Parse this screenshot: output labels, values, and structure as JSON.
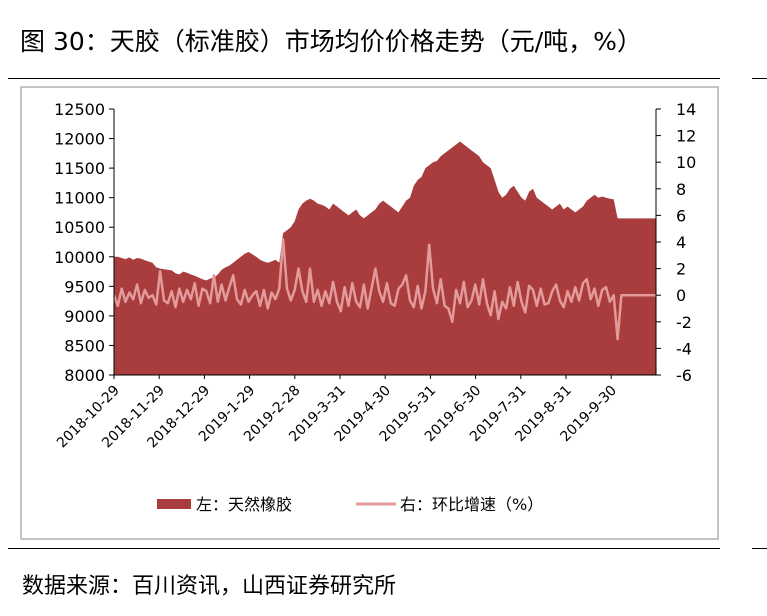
{
  "title": "图 30：天胶（标准胶）市场均价价格走势（元/吨，%）",
  "source": "数据来源：百川资讯，山西证券研究所",
  "colors": {
    "area": "#a93c3c",
    "line": "#e39a9a",
    "axis": "#000000"
  },
  "chart_data": {
    "type": "area",
    "y_left": {
      "min": 8000,
      "max": 12500,
      "ticks": [
        8000,
        8500,
        9000,
        9500,
        10000,
        10500,
        11000,
        11500,
        12000,
        12500
      ]
    },
    "y_right": {
      "min": -6,
      "max": 14,
      "ticks": [
        -6,
        -4,
        -2,
        0,
        2,
        4,
        6,
        8,
        10,
        12,
        14
      ]
    },
    "x_labels": [
      "2018-10-29",
      "2018-11-29",
      "2018-12-29",
      "2019-1-29",
      "2019-2-28",
      "2019-3-31",
      "2019-4-30",
      "2019-5-31",
      "2019-6-30",
      "2019-7-31",
      "2019-8-31",
      "2019-9-30"
    ],
    "series": [
      {
        "name": "左：天然橡胶",
        "type": "area",
        "axis": "left",
        "values": [
          10000,
          10000,
          9980,
          9960,
          9990,
          9950,
          9980,
          9970,
          9940,
          9920,
          9900,
          9820,
          9800,
          9790,
          9780,
          9770,
          9720,
          9700,
          9750,
          9730,
          9700,
          9680,
          9650,
          9620,
          9600,
          9630,
          9650,
          9700,
          9780,
          9820,
          9850,
          9900,
          9950,
          10000,
          10050,
          10080,
          10040,
          10000,
          9950,
          9920,
          9900,
          9920,
          9950,
          9900,
          10400,
          10450,
          10500,
          10600,
          10800,
          10900,
          10950,
          10980,
          10950,
          10900,
          10880,
          10850,
          10800,
          10900,
          10850,
          10800,
          10750,
          10700,
          10750,
          10800,
          10700,
          10650,
          10700,
          10750,
          10800,
          10900,
          10950,
          10900,
          10850,
          10800,
          10750,
          10850,
          10950,
          11000,
          11200,
          11300,
          11350,
          11500,
          11550,
          11600,
          11620,
          11700,
          11750,
          11800,
          11850,
          11900,
          11950,
          11900,
          11850,
          11800,
          11750,
          11700,
          11600,
          11550,
          11500,
          11300,
          11100,
          11000,
          11050,
          11150,
          11200,
          11100,
          11000,
          10950,
          11100,
          11150,
          11000,
          10950,
          10900,
          10850,
          10800,
          10850,
          10900,
          10800,
          10850,
          10800,
          10750,
          10800,
          10850,
          10950,
          11000,
          11050,
          11000,
          11020,
          11000,
          10980,
          10970,
          10650,
          10650,
          10650,
          10650,
          10650,
          10650,
          10650,
          10650,
          10650,
          10650,
          10650
        ]
      },
      {
        "name": "右：环比增速（%）",
        "type": "line",
        "axis": "right",
        "values": [
          0,
          -0.8,
          0.5,
          -0.5,
          0.2,
          -0.3,
          0.8,
          -0.6,
          0.4,
          -0.2,
          0,
          -0.7,
          1.8,
          -0.4,
          -0.6,
          0.3,
          -0.9,
          0.5,
          -0.5,
          0.4,
          -0.3,
          0.9,
          -0.8,
          0.5,
          0.3,
          -0.6,
          1.5,
          -0.5,
          0.8,
          -0.4,
          0.6,
          1.5,
          -0.3,
          -0.7,
          0.4,
          -0.5,
          0,
          0.3,
          -0.8,
          0.4,
          -1.0,
          0.2,
          -0.3,
          0.5,
          4.2,
          0.5,
          -0.4,
          0.4,
          2.0,
          0.3,
          -0.5,
          2.0,
          -0.5,
          0.4,
          -0.8,
          0.3,
          -0.6,
          1.0,
          -0.5,
          -1.2,
          0.6,
          -0.8,
          0.9,
          -0.5,
          -0.9,
          0.8,
          -1.0,
          0.5,
          2.0,
          0.3,
          -0.5,
          0.9,
          -0.6,
          -0.8,
          0.5,
          0.8,
          1.5,
          -0.4,
          -0.9,
          0.7,
          -1.0,
          0.3,
          3.8,
          0.5,
          -0.6,
          1.2,
          -0.8,
          -1.0,
          -2.0,
          0.4,
          -0.6,
          1.0,
          -0.9,
          -0.4,
          0.8,
          -0.7,
          1.2,
          -0.6,
          -1.5,
          0.3,
          -1.8,
          -0.5,
          -1.0,
          0.6,
          -0.8,
          1.0,
          -0.5,
          -1.3,
          0.7,
          0.4,
          -0.8,
          0.5,
          -0.7,
          -0.6,
          0.3,
          0.8,
          -0.4,
          -0.9,
          0.3,
          -0.5,
          0.6,
          -0.4,
          0.9,
          1.2,
          -0.3,
          0.5,
          -0.8,
          0.4,
          0.6,
          -0.5,
          0,
          -3.3,
          0,
          0,
          0,
          0,
          0,
          0,
          0,
          0,
          0,
          0
        ]
      }
    ],
    "legend": {
      "position": "bottom"
    }
  }
}
